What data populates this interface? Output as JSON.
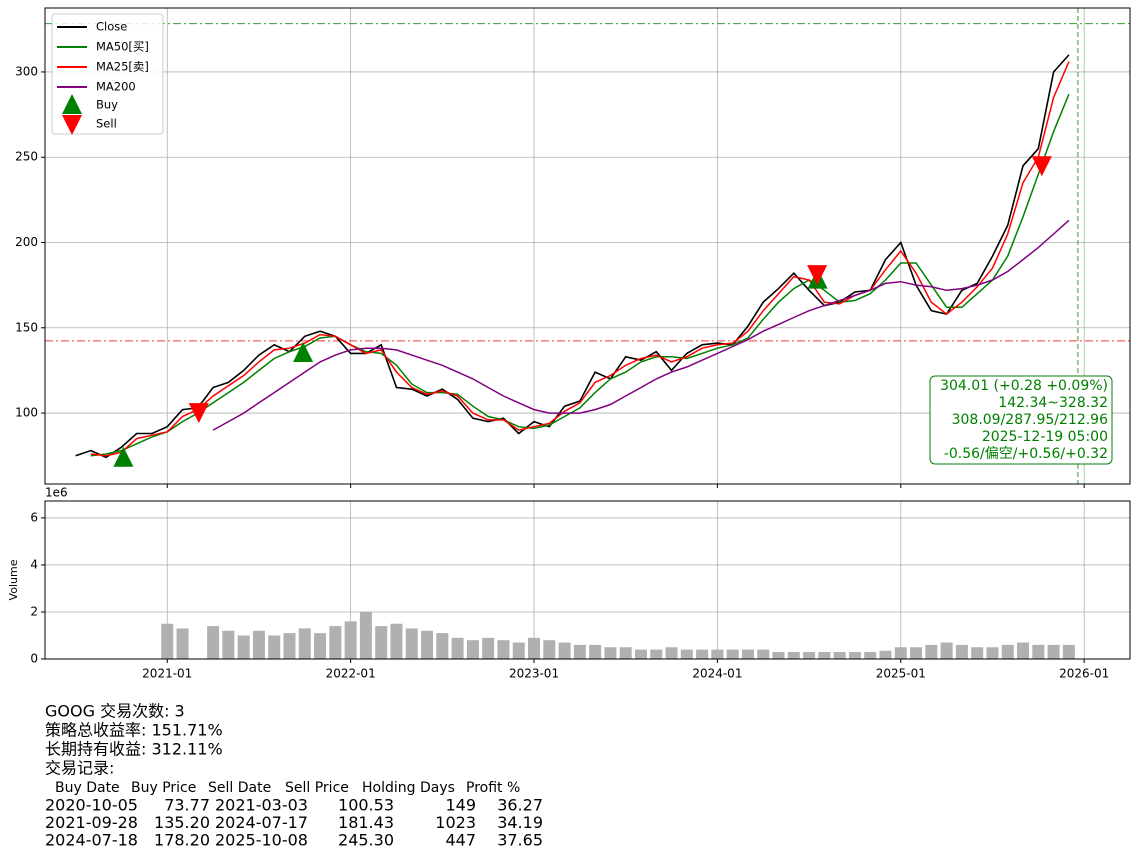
{
  "chart_data": {
    "type": "line",
    "x": [
      "2020-07",
      "2020-08",
      "2020-09",
      "2020-10",
      "2020-11",
      "2020-12",
      "2021-01",
      "2021-02",
      "2021-03",
      "2021-04",
      "2021-05",
      "2021-06",
      "2021-07",
      "2021-08",
      "2021-09",
      "2021-10",
      "2021-11",
      "2021-12",
      "2022-01",
      "2022-02",
      "2022-03",
      "2022-04",
      "2022-05",
      "2022-06",
      "2022-07",
      "2022-08",
      "2022-09",
      "2022-10",
      "2022-11",
      "2022-12",
      "2023-01",
      "2023-02",
      "2023-03",
      "2023-04",
      "2023-05",
      "2023-06",
      "2023-07",
      "2023-08",
      "2023-09",
      "2023-10",
      "2023-11",
      "2023-12",
      "2024-01",
      "2024-02",
      "2024-03",
      "2024-04",
      "2024-05",
      "2024-06",
      "2024-07",
      "2024-08",
      "2024-09",
      "2024-10",
      "2024-11",
      "2024-12",
      "2025-01",
      "2025-02",
      "2025-03",
      "2025-04",
      "2025-05",
      "2025-06",
      "2025-07",
      "2025-08",
      "2025-09",
      "2025-10",
      "2025-11",
      "2025-12"
    ],
    "series": [
      {
        "name": "Close",
        "color": "#000000",
        "values": [
          75,
          78,
          74,
          80,
          88,
          88,
          92,
          102,
          103,
          115,
          118,
          125,
          134,
          140,
          136,
          145,
          148,
          145,
          135,
          135,
          140,
          115,
          114,
          110,
          114,
          108,
          97,
          95,
          97,
          88,
          95,
          92,
          104,
          107,
          124,
          120,
          133,
          131,
          136,
          125,
          135,
          140,
          141,
          140,
          151,
          165,
          173,
          182,
          172,
          163,
          165,
          171,
          172,
          190,
          200,
          175,
          160,
          158,
          172,
          176,
          192,
          210,
          245,
          255,
          300,
          310
        ]
      },
      {
        "name": "MA50[买]",
        "color": "#008000",
        "values": [
          null,
          75,
          76,
          78,
          82,
          86,
          89,
          95,
          100,
          106,
          112,
          118,
          125,
          132,
          136,
          139,
          144,
          145,
          140,
          136,
          135,
          128,
          117,
          112,
          112,
          111,
          104,
          98,
          96,
          92,
          91,
          93,
          98,
          103,
          112,
          120,
          124,
          130,
          133,
          133,
          132,
          135,
          138,
          140,
          144,
          155,
          165,
          173,
          178,
          172,
          165,
          166,
          170,
          178,
          188,
          188,
          175,
          162,
          162,
          170,
          178,
          192,
          215,
          240,
          265,
          287
        ]
      },
      {
        "name": "MA25[卖]",
        "color": "#ff0000",
        "values": [
          null,
          76,
          75,
          77,
          85,
          87,
          89,
          98,
          102,
          110,
          116,
          122,
          130,
          137,
          138,
          141,
          146,
          145,
          140,
          135,
          137,
          124,
          115,
          111,
          113,
          110,
          100,
          96,
          96,
          90,
          92,
          94,
          101,
          106,
          118,
          122,
          128,
          132,
          134,
          130,
          133,
          138,
          140,
          141,
          148,
          160,
          170,
          180,
          178,
          165,
          164,
          169,
          172,
          184,
          195,
          182,
          165,
          158,
          165,
          174,
          185,
          205,
          235,
          250,
          285,
          306
        ]
      },
      {
        "name": "MA200",
        "color": "#800080",
        "values": [
          null,
          null,
          null,
          null,
          null,
          null,
          null,
          null,
          null,
          90,
          95,
          100,
          106,
          112,
          118,
          124,
          130,
          134,
          137,
          138,
          138,
          137,
          134,
          131,
          128,
          124,
          120,
          115,
          110,
          106,
          102,
          100,
          100,
          100,
          102,
          105,
          110,
          115,
          120,
          124,
          127,
          131,
          135,
          139,
          143,
          148,
          152,
          156,
          160,
          163,
          166,
          169,
          172,
          176,
          177,
          175,
          174,
          172,
          173,
          175,
          178,
          183,
          190,
          197,
          205,
          213
        ]
      }
    ],
    "markers": [
      {
        "name": "Buy",
        "color": "#008000",
        "shape": "up",
        "x": [
          "2020-10-05",
          "2021-09-28",
          "2024-07-18"
        ],
        "values": [
          73.77,
          135.2,
          178.2
        ]
      },
      {
        "name": "Sell",
        "color": "#ff0000",
        "shape": "down",
        "x": [
          "2021-03-03",
          "2024-07-17",
          "2025-10-08"
        ],
        "values": [
          100.53,
          181.43,
          245.3
        ]
      }
    ],
    "hlines": [
      {
        "value": 328.32,
        "color": "#2ca02c"
      },
      {
        "value": 142.34,
        "color": "#ff3333"
      }
    ],
    "vline": {
      "x": "2025-12-19",
      "color": "#2ca02c"
    },
    "annotation": [
      "304.01 (+0.28 +0.09%)",
      "142.34~328.32",
      "308.09/287.95/212.96",
      "2025-12-19 05:00",
      "-0.56/偏空/+0.56/+0.32"
    ],
    "xlim": [
      "2020-05",
      "2026-04"
    ],
    "xticks": [
      "2021-01",
      "2022-01",
      "2023-01",
      "2024-01",
      "2025-01",
      "2026-01"
    ],
    "ylim": [
      58.4,
      337.5
    ],
    "yticks": [
      100,
      150,
      200,
      250,
      300
    ],
    "grid": true,
    "legend": "upper left",
    "volume": {
      "label": "Volume",
      "scale_label": "1e6",
      "color": "#b0b0b0",
      "ylim": [
        0,
        6.72
      ],
      "yticks": [
        0,
        2,
        4,
        6
      ],
      "values": [
        null,
        null,
        null,
        null,
        null,
        null,
        1.5,
        1.3,
        null,
        1.4,
        1.2,
        1.0,
        1.2,
        1.0,
        1.1,
        1.3,
        1.1,
        1.4,
        1.6,
        2.0,
        1.4,
        1.5,
        1.3,
        1.2,
        1.1,
        0.9,
        0.8,
        0.9,
        0.8,
        0.7,
        0.9,
        0.8,
        0.7,
        0.6,
        0.6,
        0.5,
        0.5,
        0.4,
        0.4,
        0.5,
        0.4,
        0.4,
        0.4,
        0.4,
        0.4,
        0.4,
        0.3,
        0.3,
        0.3,
        0.3,
        0.3,
        0.3,
        0.3,
        0.35,
        0.5,
        0.5,
        0.6,
        0.7,
        0.6,
        0.5,
        0.5,
        0.6,
        0.7,
        0.6,
        0.6,
        0.6
      ]
    }
  },
  "report": {
    "lines": [
      "GOOG 交易次数: 3",
      "策略总收益率: 151.71%",
      "长期持有收益: 312.11%",
      "交易记录:"
    ],
    "header": [
      "Buy Date",
      "Buy Price",
      "Sell Date",
      "Sell Price",
      "Holding Days",
      "Profit %"
    ],
    "rows": [
      [
        "2020-10-05",
        "73.77",
        "2021-03-03",
        "100.53",
        "149",
        "36.27"
      ],
      [
        "2021-09-28",
        "135.20",
        "2024-07-17",
        "181.43",
        "1023",
        "34.19"
      ],
      [
        "2024-07-18",
        "178.20",
        "2025-10-08",
        "245.30",
        "447",
        "37.65"
      ]
    ]
  }
}
